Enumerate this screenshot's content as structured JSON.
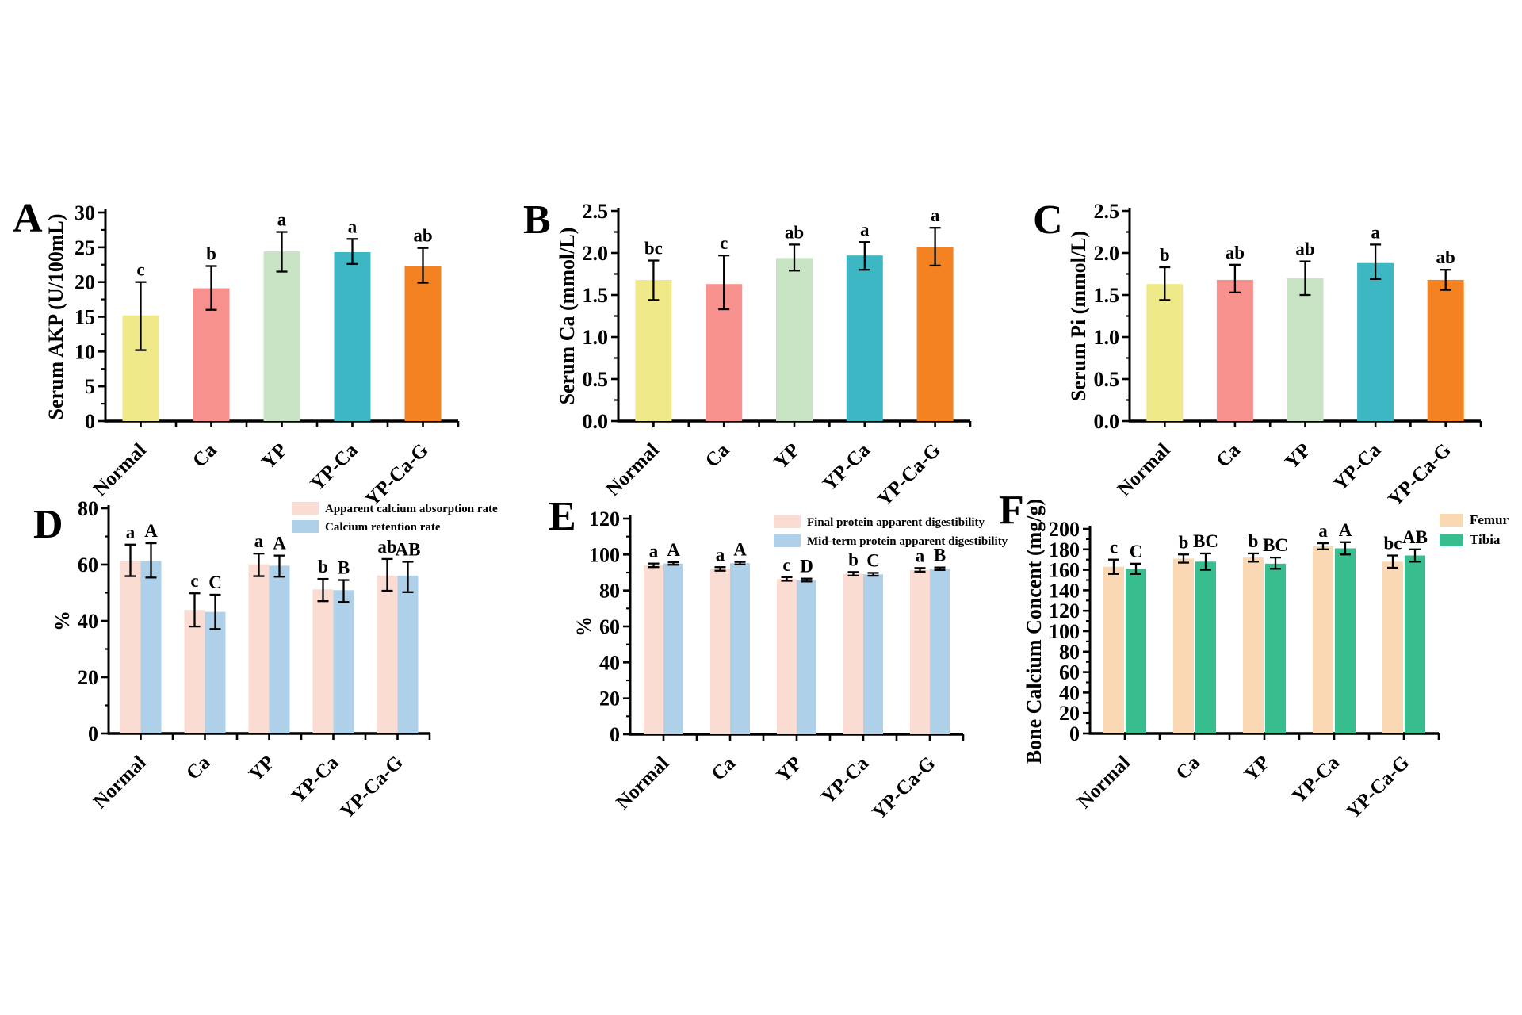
{
  "figure": {
    "background": "#ffffff",
    "text_color": "#000000"
  },
  "chart_data": [
    {
      "panel_label": "A",
      "type": "bar",
      "title": "",
      "xlabel": "",
      "ylabel": "Serum AKP (U/100mL)",
      "ylim": [
        0,
        30
      ],
      "ytick_step": 5,
      "y_decimals": 0,
      "grid": false,
      "categories": [
        "Normal",
        "Ca",
        "YP",
        "YP-Ca",
        "YP-Ca-G"
      ],
      "series": [
        {
          "name": null,
          "colors": [
            "#efe98a",
            "#f7918e",
            "#c8e4c4",
            "#3eb7c5",
            "#f58220"
          ],
          "values": [
            15.2,
            19.1,
            24.4,
            24.3,
            22.3
          ],
          "err_lo": [
            10.2,
            16.0,
            21.5,
            22.6,
            19.9
          ],
          "err_hi": [
            20.0,
            22.3,
            27.2,
            26.2,
            24.9
          ],
          "letters": [
            "c",
            "b",
            "a",
            "a",
            "ab"
          ]
        }
      ]
    },
    {
      "panel_label": "B",
      "type": "bar",
      "title": "",
      "xlabel": "",
      "ylabel": "Serum Ca (mmol/L)",
      "ylim": [
        0,
        2.5
      ],
      "ytick_step": 0.5,
      "y_decimals": 1,
      "grid": false,
      "categories": [
        "Normal",
        "Ca",
        "YP",
        "YP-Ca",
        "YP-Ca-G"
      ],
      "series": [
        {
          "name": null,
          "colors": [
            "#efe98a",
            "#f7918e",
            "#c8e4c4",
            "#3eb7c5",
            "#f58220"
          ],
          "values": [
            1.68,
            1.63,
            1.94,
            1.97,
            2.07
          ],
          "err_lo": [
            1.44,
            1.33,
            1.79,
            1.8,
            1.85
          ],
          "err_hi": [
            1.91,
            1.97,
            2.1,
            2.13,
            2.3
          ],
          "letters": [
            "bc",
            "c",
            "ab",
            "a",
            "a"
          ]
        }
      ]
    },
    {
      "panel_label": "C",
      "type": "bar",
      "title": "",
      "xlabel": "",
      "ylabel": "Serum Pi (mmol/L)",
      "ylim": [
        0,
        2.5
      ],
      "ytick_step": 0.5,
      "y_decimals": 1,
      "grid": false,
      "categories": [
        "Normal",
        "Ca",
        "YP",
        "YP-Ca",
        "YP-Ca-G"
      ],
      "series": [
        {
          "name": null,
          "colors": [
            "#efe98a",
            "#f7918e",
            "#c8e4c4",
            "#3eb7c5",
            "#f58220"
          ],
          "values": [
            1.63,
            1.68,
            1.7,
            1.88,
            1.68
          ],
          "err_lo": [
            1.44,
            1.53,
            1.5,
            1.69,
            1.56
          ],
          "err_hi": [
            1.83,
            1.86,
            1.9,
            2.1,
            1.8
          ],
          "letters": [
            "b",
            "ab",
            "ab",
            "a",
            "ab"
          ]
        }
      ]
    },
    {
      "panel_label": "D",
      "type": "bar",
      "title": "",
      "xlabel": "",
      "ylabel": "%",
      "ylim": [
        0,
        80
      ],
      "ytick_step": 20,
      "y_decimals": 0,
      "grid": false,
      "legend_position": "top-right",
      "categories": [
        "Normal",
        "Ca",
        "YP",
        "YP-Ca",
        "YP-Ca-G"
      ],
      "series": [
        {
          "name": "Apparent calcium absorption rate",
          "color": "#fbdcd2",
          "values": [
            61.4,
            43.9,
            60.1,
            51.2,
            56.1
          ],
          "err_lo": [
            55.9,
            38.0,
            55.9,
            47.0,
            50.7
          ],
          "err_hi": [
            67.1,
            49.8,
            63.9,
            54.9,
            62.0
          ],
          "letters": [
            "a",
            "c",
            "a",
            "b",
            "ab"
          ]
        },
        {
          "name": "Calcium retention rate",
          "color": "#aed0e9",
          "values": [
            61.3,
            43.2,
            59.6,
            50.9,
            56.1
          ],
          "err_lo": [
            55.4,
            37.1,
            55.7,
            46.7,
            50.2
          ],
          "err_hi": [
            67.6,
            49.3,
            63.2,
            54.5,
            61.0
          ],
          "letters": [
            "A",
            "C",
            "A",
            "B",
            "AB"
          ]
        }
      ]
    },
    {
      "panel_label": "E",
      "type": "bar",
      "title": "",
      "xlabel": "",
      "ylabel": "%",
      "ylim": [
        0,
        120
      ],
      "ytick_step": 20,
      "y_decimals": 0,
      "grid": false,
      "legend_position": "top-right",
      "categories": [
        "Normal",
        "Ca",
        "YP",
        "YP-Ca",
        "YP-Ca-G"
      ],
      "series": [
        {
          "name": "Final protein apparent digestibility",
          "color": "#fbdcd2",
          "values": [
            94.0,
            92.0,
            86.4,
            89.3,
            91.5
          ],
          "err_lo": [
            93.0,
            91.0,
            85.4,
            88.3,
            90.5
          ],
          "err_hi": [
            95.0,
            93.0,
            87.4,
            90.3,
            92.5
          ],
          "letters": [
            "a",
            "a",
            "c",
            "b",
            "a"
          ]
        },
        {
          "name": "Mid-term protein apparent digestibility",
          "color": "#aed0e9",
          "values": [
            95.0,
            95.2,
            85.8,
            89.0,
            92.1
          ],
          "err_lo": [
            94.3,
            94.5,
            85.0,
            88.2,
            91.4
          ],
          "err_hi": [
            95.7,
            95.9,
            86.6,
            89.8,
            92.8
          ],
          "letters": [
            "A",
            "A",
            "D",
            "C",
            "B"
          ]
        }
      ]
    },
    {
      "panel_label": "F",
      "type": "bar",
      "title": "",
      "xlabel": "",
      "ylabel": "Bone Calcium Concent (mg/g)",
      "ylim": [
        0,
        200
      ],
      "ytick_step": 20,
      "y_decimals": 0,
      "grid": false,
      "legend_position": "right",
      "categories": [
        "Normal",
        "Ca",
        "YP",
        "YP-Ca",
        "YP-Ca-G"
      ],
      "series": [
        {
          "name": "Femur",
          "color": "#fad8b4",
          "values": [
            163,
            171,
            172,
            183,
            168
          ],
          "err_lo": [
            156,
            167,
            168,
            180,
            162
          ],
          "err_hi": [
            170,
            175,
            176,
            186,
            174
          ],
          "letters": [
            "c",
            "b",
            "b",
            "a",
            "bc"
          ]
        },
        {
          "name": "Tibia",
          "color": "#38bd8e",
          "values": [
            161,
            168,
            166,
            181,
            174
          ],
          "err_lo": [
            156,
            160,
            161,
            175,
            168
          ],
          "err_hi": [
            166,
            176,
            172,
            187,
            180
          ],
          "letters": [
            "C",
            "BC",
            "BC",
            "A",
            "AB"
          ]
        }
      ]
    }
  ]
}
